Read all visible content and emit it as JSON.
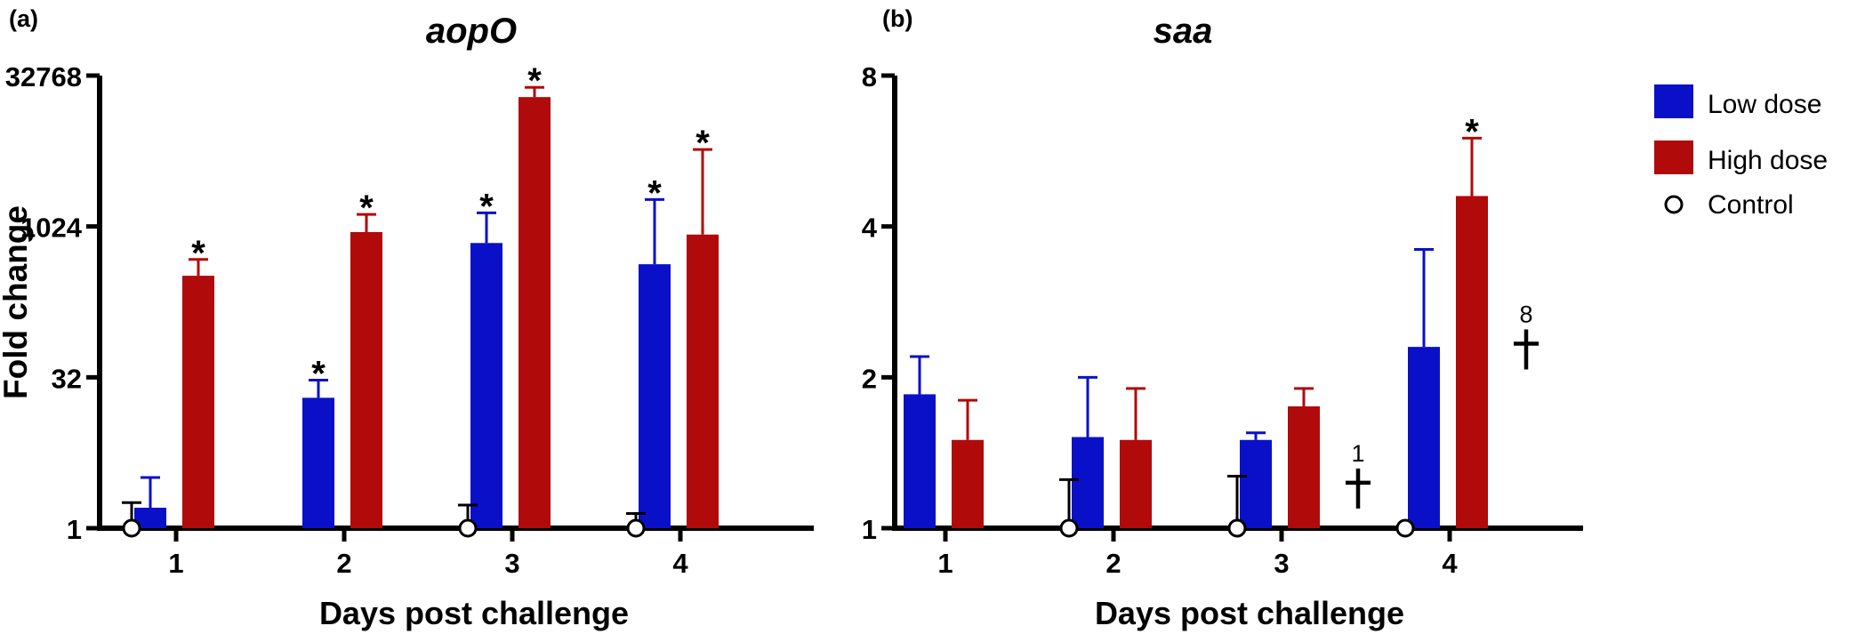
{
  "figure_labels": {
    "a": "(a)",
    "b": "(b)"
  },
  "legend": {
    "low": "Low dose",
    "high": "High dose",
    "control": "Control"
  },
  "colors": {
    "low": "#0a10c8",
    "high": "#b00a0a",
    "axis": "#000000"
  },
  "chart_data": [
    {
      "id": "a",
      "type": "bar",
      "title": "aopO",
      "xlabel": "Days post challenge",
      "ylabel": "Fold change",
      "yscale": "log2",
      "ylim": [
        1,
        32768
      ],
      "yticks": [
        1,
        32,
        1024,
        32768
      ],
      "ytick_labels": [
        "1",
        "32",
        "1024",
        "32768"
      ],
      "categories": [
        "1",
        "2",
        "3",
        "4"
      ],
      "series": [
        {
          "name": "Low dose",
          "values": [
            1.6,
            20,
            700,
            430
          ],
          "err_upper": [
            3.2,
            30,
            1400,
            1900
          ],
          "significant": [
            false,
            true,
            true,
            true
          ]
        },
        {
          "name": "High dose",
          "values": [
            330,
            900,
            20000,
            850
          ],
          "err_upper": [
            480,
            1350,
            25000,
            6000
          ],
          "significant": [
            true,
            true,
            true,
            true
          ]
        }
      ],
      "control": {
        "name": "Control",
        "values": [
          1,
          null,
          1,
          1
        ],
        "err_upper": [
          1.8,
          null,
          1.7,
          1.4
        ]
      },
      "annotations": []
    },
    {
      "id": "b",
      "type": "bar",
      "title": "saa",
      "xlabel": "Days post challenge",
      "ylabel": "",
      "yscale": "log2",
      "ylim": [
        1,
        8
      ],
      "yticks": [
        1,
        2,
        4,
        8
      ],
      "ytick_labels": [
        "1",
        "2",
        "4",
        "8"
      ],
      "categories": [
        "1",
        "2",
        "3",
        "4"
      ],
      "series": [
        {
          "name": "Low dose",
          "values": [
            1.85,
            1.52,
            1.5,
            2.3
          ],
          "err_upper": [
            2.2,
            2.0,
            1.55,
            3.6
          ],
          "significant": [
            false,
            false,
            false,
            false
          ]
        },
        {
          "name": "High dose",
          "values": [
            1.5,
            1.5,
            1.75,
            4.6
          ],
          "err_upper": [
            1.8,
            1.9,
            1.9,
            6.0
          ],
          "significant": [
            false,
            false,
            false,
            true
          ]
        }
      ],
      "control": {
        "name": "Control",
        "values": [
          null,
          1,
          1,
          1
        ],
        "err_upper": [
          null,
          1.25,
          1.27,
          null
        ]
      },
      "annotations": [
        {
          "day": "3",
          "symbol": "†",
          "label": "1"
        },
        {
          "day": "4",
          "symbol": "†",
          "label": "8"
        }
      ]
    }
  ]
}
